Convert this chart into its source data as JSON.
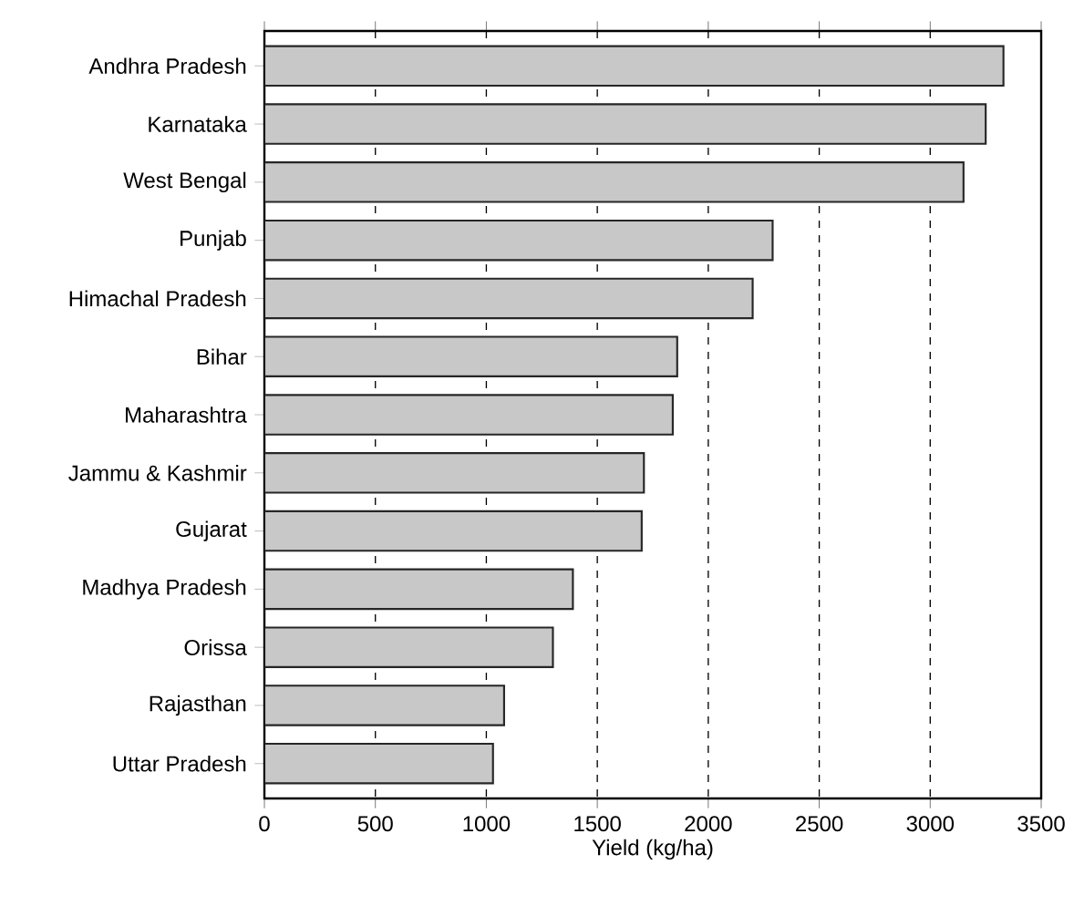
{
  "chart_data": {
    "type": "bar",
    "orientation": "horizontal",
    "xlabel": "Yield (kg/ha)",
    "categories": [
      "Andhra Pradesh",
      "Karnataka",
      "West Bengal",
      "Punjab",
      "Himachal Pradesh",
      "Bihar",
      "Maharashtra",
      "Jammu & Kashmir",
      "Gujarat",
      "Madhya Pradesh",
      "Orissa",
      "Rajasthan",
      "Uttar Pradesh"
    ],
    "values": [
      3330,
      3250,
      3150,
      2290,
      2200,
      1860,
      1840,
      1710,
      1700,
      1390,
      1300,
      1080,
      1030
    ],
    "color": "#c8c8c8",
    "xlim": [
      0,
      3500
    ],
    "xticks": [
      0,
      500,
      1000,
      1500,
      2000,
      2500,
      3000,
      3500
    ],
    "grid": "x"
  }
}
